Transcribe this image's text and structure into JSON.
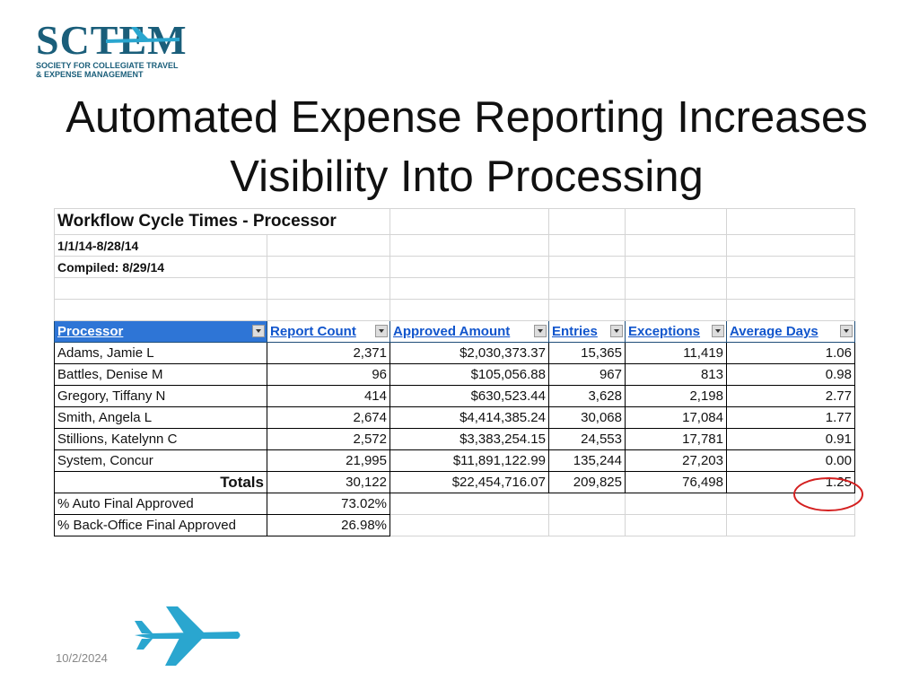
{
  "logo": {
    "name": "SCTEM",
    "lines": [
      "SOCIETY FOR COLLEGIATE TRAVEL",
      "& EXPENSE MANAGEMENT"
    ]
  },
  "title": "Automated Expense Reporting Increases Visibility Into Processing",
  "table": {
    "title": "Workflow Cycle Times - Processor",
    "subtitles": [
      "1/1/14-8/28/14",
      "Compiled: 8/29/14"
    ],
    "columns": [
      "Processor",
      "Report Count",
      "Approved Amount",
      "Entries",
      "Exceptions",
      "Average Days"
    ],
    "rows": [
      [
        "Adams, Jamie L",
        "2,371",
        "$2,030,373.37",
        "15,365",
        "11,419",
        "1.06"
      ],
      [
        "Battles, Denise M",
        "96",
        "$105,056.88",
        "967",
        "813",
        "0.98"
      ],
      [
        "Gregory, Tiffany N",
        "414",
        "$630,523.44",
        "3,628",
        "2,198",
        "2.77"
      ],
      [
        "Smith, Angela L",
        "2,674",
        "$4,414,385.24",
        "30,068",
        "17,084",
        "1.77"
      ],
      [
        "Stillions, Katelynn C",
        "2,572",
        "$3,383,254.15",
        "24,553",
        "17,781",
        "0.91"
      ],
      [
        "System, Concur",
        "21,995",
        "$11,891,122.99",
        "135,244",
        "27,203",
        "0.00"
      ],
      [
        "Totals",
        "30,122",
        "$22,454,716.07",
        "209,825",
        "76,498",
        "1.25"
      ]
    ],
    "percent_rows": [
      [
        "% Auto Final Approved",
        "73.02%"
      ],
      [
        "% Back-Office Final Approved",
        "26.98%"
      ]
    ]
  },
  "date": "10/2/2024"
}
